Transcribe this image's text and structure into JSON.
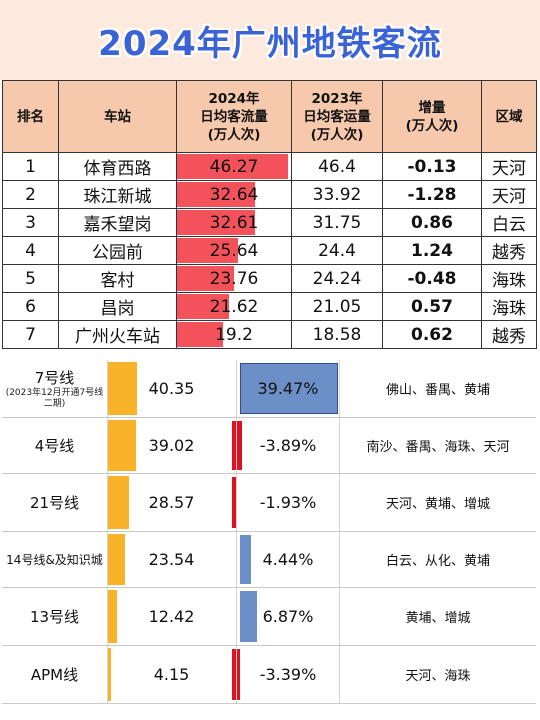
{
  "title": "2024年广州地铁客流",
  "colors": {
    "title": "#3a63d6",
    "header_bg": "#f6c9ad",
    "bar_2024": "#f4525a",
    "bar_volume": "#f9b32a",
    "bar_positive": "#6d8fc7",
    "bar_negative": "#e0111f"
  },
  "stations_table": {
    "headers": [
      "排名",
      "车站",
      "2024年日均客流量(万人次)",
      "2023年日均客运量(万人次)",
      "增量(万人次)",
      "区域"
    ],
    "header_lines": [
      [
        "排名"
      ],
      [
        "车站"
      ],
      [
        "2024年",
        "日均客流量",
        "(万人次)"
      ],
      [
        "2023年",
        "日均客运量",
        "(万人次)"
      ],
      [
        "增量",
        "(万人次)"
      ],
      [
        "区域"
      ]
    ],
    "rows": [
      {
        "rank": "1",
        "station": "体育西路",
        "v2024": "46.27",
        "v2023": "46.4",
        "delta": "-0.13",
        "district": "天河"
      },
      {
        "rank": "2",
        "station": "珠江新城",
        "v2024": "32.64",
        "v2023": "33.92",
        "delta": "-1.28",
        "district": "天河"
      },
      {
        "rank": "3",
        "station": "嘉禾望岗",
        "v2024": "32.61",
        "v2023": "31.75",
        "delta": "0.86",
        "district": "白云"
      },
      {
        "rank": "4",
        "station": "公园前",
        "v2024": "25.64",
        "v2023": "24.4",
        "delta": "1.24",
        "district": "越秀"
      },
      {
        "rank": "5",
        "station": "客村",
        "v2024": "23.76",
        "v2023": "24.24",
        "delta": "-0.48",
        "district": "海珠"
      },
      {
        "rank": "6",
        "station": "昌岗",
        "v2024": "21.62",
        "v2023": "21.05",
        "delta": "0.57",
        "district": "海珠"
      },
      {
        "rank": "7",
        "station": "广州火车站",
        "v2024": "19.2",
        "v2023": "18.58",
        "delta": "0.62",
        "district": "越秀"
      }
    ]
  },
  "lines_table": {
    "rows": [
      {
        "name": "7号线",
        "note": "(2023年12月开通7号线二期)",
        "volume": "40.35",
        "change": "39.47%",
        "change_value": 39.47,
        "regions": "佛山、番禺、黄埔"
      },
      {
        "name": "4号线",
        "note": "",
        "volume": "39.02",
        "change": "-3.89%",
        "change_value": -3.89,
        "regions": "南沙、番禺、海珠、天河"
      },
      {
        "name": "21号线",
        "note": "",
        "volume": "28.57",
        "change": "-1.93%",
        "change_value": -1.93,
        "regions": "天河、黄埔、增城"
      },
      {
        "name": "14号线&及知识城",
        "note": "",
        "volume": "23.54",
        "change": "4.44%",
        "change_value": 4.44,
        "regions": "白云、从化、黄埔"
      },
      {
        "name": "13号线",
        "note": "",
        "volume": "12.42",
        "change": "6.87%",
        "change_value": 6.87,
        "regions": "黄埔、增城"
      },
      {
        "name": "APM线",
        "note": "",
        "volume": "4.15",
        "change": "-3.39%",
        "change_value": -3.39,
        "regions": "天河、海珠"
      }
    ]
  }
}
